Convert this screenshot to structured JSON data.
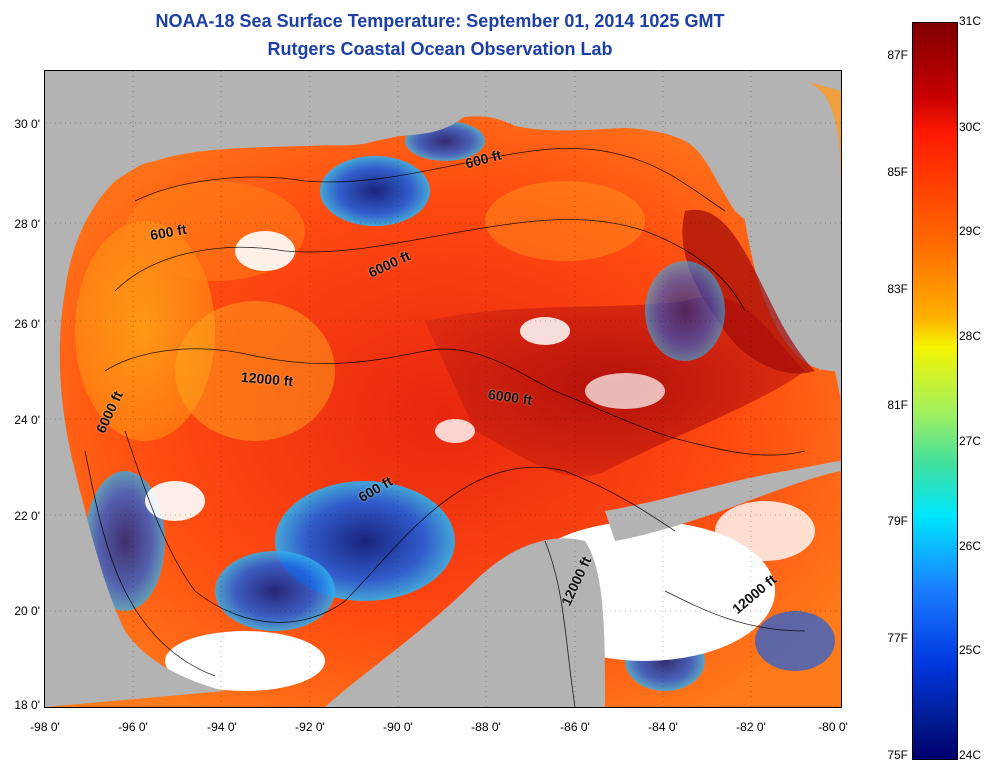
{
  "title": {
    "line1": "NOAA-18 Sea Surface Temperature:  September 01, 2014 1025 GMT",
    "line2": "Rutgers Coastal Ocean Observation Lab"
  },
  "map": {
    "region": "Gulf of Mexico",
    "latitude_labels": [
      "30 0'",
      "28 0'",
      "26 0'",
      "24 0'",
      "22 0'",
      "20 0'",
      "18 0'"
    ],
    "longitude_labels": [
      "-98 0'",
      "-96 0'",
      "-94 0'",
      "-92 0'",
      "-90 0'",
      "-88 0'",
      "-86 0'",
      "-84 0'",
      "-82 0'",
      "-80 0'"
    ],
    "contour_labels": {
      "c1": "600 ft",
      "c2": "600 ft",
      "c3": "6000 ft",
      "c4": "12000 ft",
      "c5": "6000 ft",
      "c6": "6000 ft",
      "c7": "600 ft",
      "c8": "12000 ft",
      "c9": "12000 ft"
    },
    "colors": {
      "land": "#b3b3b3",
      "cloud": "#ffffff",
      "contour": "#000000"
    }
  },
  "colorbar": {
    "celsius": [
      "31C",
      "30C",
      "29C",
      "28C",
      "27C",
      "26C",
      "25C",
      "24C"
    ],
    "fahrenheit": [
      "87F",
      "85F",
      "83F",
      "81F",
      "79F",
      "77F",
      "75F"
    ]
  }
}
